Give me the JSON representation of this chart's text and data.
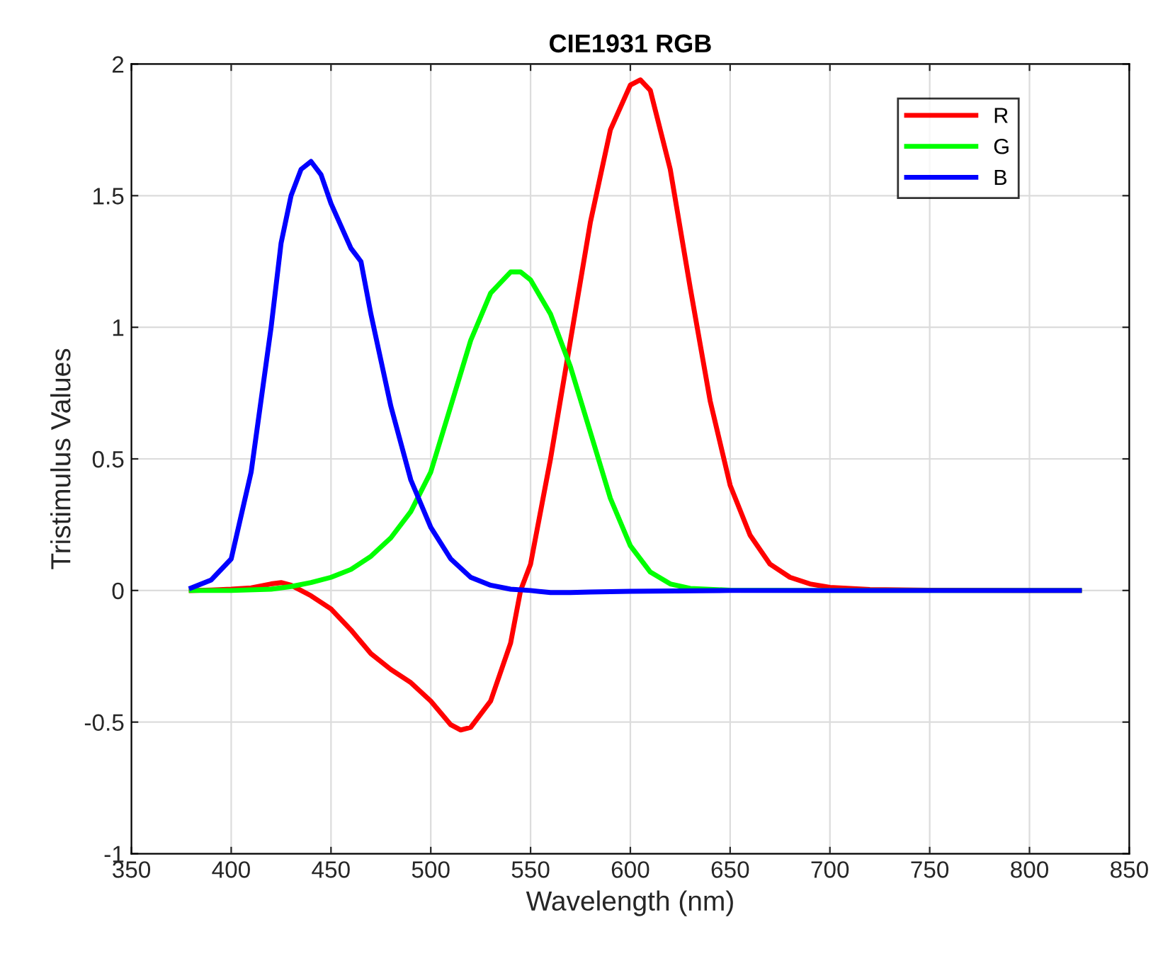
{
  "chart_data": {
    "type": "line",
    "title": "CIE1931 RGB",
    "xlabel": "Wavelength (nm)",
    "ylabel": "Tristimulus Values",
    "xlim": [
      350,
      850
    ],
    "xticks": [
      350,
      400,
      450,
      500,
      550,
      600,
      650,
      700,
      750,
      800,
      850
    ],
    "ylim": [
      -1,
      2
    ],
    "yticks": [
      -1,
      -0.5,
      0,
      0.5,
      1,
      1.5,
      2
    ],
    "grid": true,
    "legend": "top right",
    "line_style": "solid",
    "series": [
      {
        "name": "R",
        "color": "#ff0000",
        "x": [
          380,
          390,
          400,
          410,
          420,
          425,
          430,
          440,
          450,
          460,
          470,
          480,
          490,
          500,
          510,
          515,
          520,
          530,
          540,
          545,
          550,
          560,
          570,
          580,
          590,
          600,
          605,
          610,
          620,
          630,
          640,
          650,
          660,
          670,
          680,
          690,
          700,
          720,
          750,
          800,
          825
        ],
        "values": [
          0,
          0.002,
          0.005,
          0.01,
          0.025,
          0.03,
          0.02,
          -0.02,
          -0.07,
          -0.15,
          -0.24,
          -0.3,
          -0.35,
          -0.42,
          -0.51,
          -0.53,
          -0.52,
          -0.42,
          -0.2,
          0,
          0.1,
          0.5,
          0.95,
          1.4,
          1.75,
          1.92,
          1.94,
          1.9,
          1.6,
          1.15,
          0.72,
          0.4,
          0.21,
          0.1,
          0.05,
          0.025,
          0.012,
          0.004,
          0.001,
          0,
          0
        ]
      },
      {
        "name": "G",
        "color": "#00ff00",
        "x": [
          380,
          400,
          420,
          430,
          440,
          450,
          460,
          470,
          480,
          490,
          500,
          510,
          520,
          530,
          540,
          545,
          550,
          560,
          570,
          580,
          590,
          600,
          610,
          620,
          630,
          650,
          700,
          825
        ],
        "values": [
          0,
          0,
          0.005,
          0.015,
          0.03,
          0.05,
          0.08,
          0.13,
          0.2,
          0.3,
          0.45,
          0.7,
          0.95,
          1.13,
          1.21,
          1.21,
          1.18,
          1.05,
          0.85,
          0.6,
          0.35,
          0.17,
          0.07,
          0.025,
          0.008,
          0.001,
          0,
          0
        ]
      },
      {
        "name": "B",
        "color": "#0000ff",
        "x": [
          380,
          390,
          400,
          410,
          420,
          425,
          430,
          435,
          440,
          445,
          450,
          460,
          465,
          470,
          480,
          490,
          500,
          510,
          520,
          530,
          540,
          550,
          560,
          570,
          580,
          600,
          650,
          825
        ],
        "values": [
          0.01,
          0.04,
          0.12,
          0.45,
          1.0,
          1.32,
          1.5,
          1.6,
          1.63,
          1.58,
          1.47,
          1.3,
          1.25,
          1.05,
          0.7,
          0.42,
          0.24,
          0.12,
          0.05,
          0.02,
          0.005,
          0,
          -0.008,
          -0.008,
          -0.006,
          -0.003,
          0,
          0
        ]
      }
    ]
  }
}
